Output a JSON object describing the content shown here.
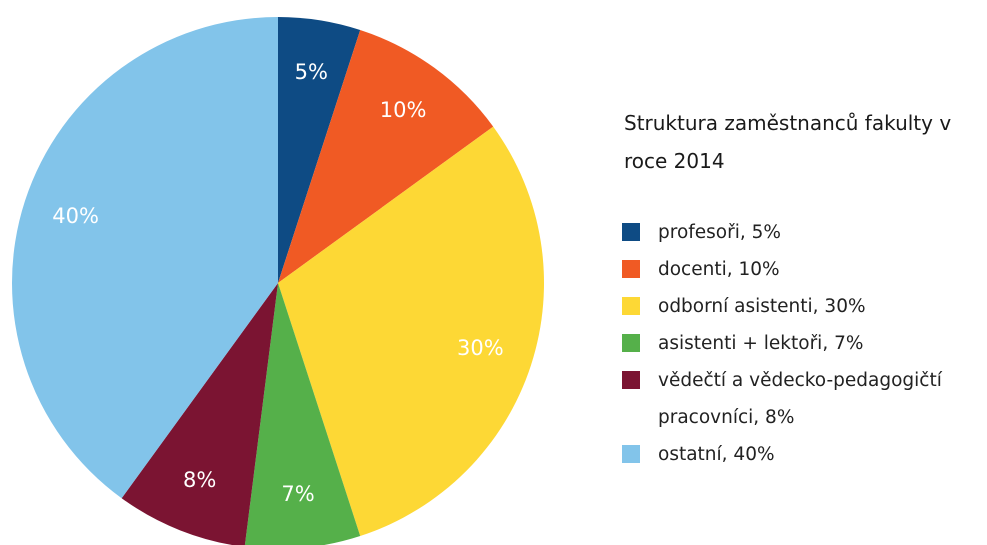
{
  "chart_data": {
    "type": "pie",
    "title": "Struktura zaměstnanců fakulty v roce 2014",
    "categories": [
      "profesoři",
      "docenti",
      "odborní asistenti",
      "asistenti + lektoři",
      "vědečtí a vědecko-pedagogičtí pracovníci",
      "ostatní"
    ],
    "values": [
      5,
      10,
      30,
      7,
      8,
      40
    ],
    "value_labels": [
      "5%",
      "10%",
      "30%",
      "7%",
      "8%",
      "40%"
    ],
    "legend_labels": [
      "profesoři, 5%",
      "docenti, 10%",
      "odborní asistenti, 30%",
      "asistenti + lektoři, 7%",
      "vědečtí a vědecko-pedagogičtí pracovníci, 8%",
      "ostatní, 40%"
    ],
    "colors": [
      "#0e4b84",
      "#f05a24",
      "#fdd835",
      "#55b04a",
      "#7b1432",
      "#82c4ea"
    ]
  }
}
